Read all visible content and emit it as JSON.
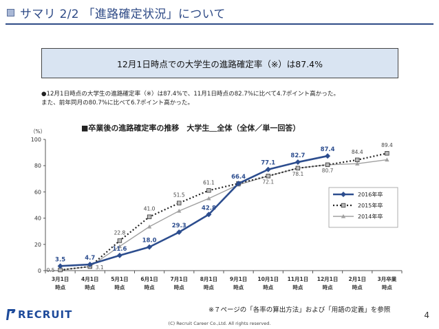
{
  "header": {
    "title": "サマリ 2/2 「進路確定状況」について"
  },
  "highlight": {
    "text": "12月1日時点での大学生の進路確定率（※）は87.4%"
  },
  "summary": {
    "line1": "●12月1日時点の大学生の進路確定率（※）は87.4%で、11月1日時点の82.7%に比べて4.7ポイント高かった。",
    "line2": "また、前年同月の80.7%に比べて6.7ポイント高かった。"
  },
  "footer": {
    "footnote": "※７ページの「各率の算出方法」および「用語の定義」を参照",
    "page_number": "4",
    "copyright": "(C) Recruit Career Co.,Ltd. All rights reserved.",
    "logo_text": "RECRUIT"
  },
  "colors": {
    "accent": "#2e4a86",
    "series_2016": "#2c4d8e",
    "series_2015": "#222222",
    "series_2014": "#a0a0a0"
  },
  "chart_data": {
    "type": "line",
    "title": "■卒業後の進路確定率の推移　大学生＿全体（全体／単一回答）",
    "ylabel": "（%）",
    "ylim": [
      0,
      100
    ],
    "yticks": [
      "0",
      "20",
      "40",
      "60",
      "80",
      "100"
    ],
    "grid": false,
    "legend_position": "right",
    "categories": [
      {
        "line1": "3月1日",
        "line2": "時点"
      },
      {
        "line1": "4月1日",
        "line2": "時点"
      },
      {
        "line1": "5月1日",
        "line2": "時点"
      },
      {
        "line1": "6月1日",
        "line2": "時点"
      },
      {
        "line1": "7月1日",
        "line2": "時点"
      },
      {
        "line1": "8月1日",
        "line2": "時点"
      },
      {
        "line1": "9月1日",
        "line2": "時点"
      },
      {
        "line1": "10月1日",
        "line2": "時点"
      },
      {
        "line1": "11月1日",
        "line2": "時点"
      },
      {
        "line1": "12月1日",
        "line2": "時点"
      },
      {
        "line1": "2月1日",
        "line2": "時点"
      },
      {
        "line1": "3月卒業",
        "line2": "時点"
      }
    ],
    "series": [
      {
        "name": "2016年卒",
        "values": [
          3.5,
          4.7,
          11.6,
          18.0,
          29.3,
          42.8,
          66.4,
          77.1,
          82.7,
          87.4,
          null,
          null
        ],
        "labels": [
          "3.5",
          "4.7",
          "11.6",
          "18.0",
          "29.3",
          "42.8",
          "66.4",
          "77.1",
          "82.7",
          "87.4",
          "",
          ""
        ]
      },
      {
        "name": "2015年卒",
        "values": [
          0.5,
          3.1,
          22.8,
          41.0,
          51.5,
          61.1,
          66.4,
          72.1,
          78.1,
          80.7,
          84.4,
          89.4
        ],
        "labels": [
          "",
          "",
          "22.8",
          "41.0",
          "51.5",
          "61.1",
          "",
          "",
          "",
          "",
          "84.4",
          "89.4"
        ]
      },
      {
        "name": "2014年卒",
        "values": [
          0.5,
          3.1,
          18.5,
          33.5,
          45.5,
          55.0,
          65.5,
          72.1,
          78.1,
          80.7,
          81.5,
          84.5
        ],
        "labels": [
          "0.5",
          "3.1",
          "",
          "",
          "",
          "",
          "",
          "72.1",
          "78.1",
          "80.7",
          "",
          ""
        ]
      }
    ]
  }
}
